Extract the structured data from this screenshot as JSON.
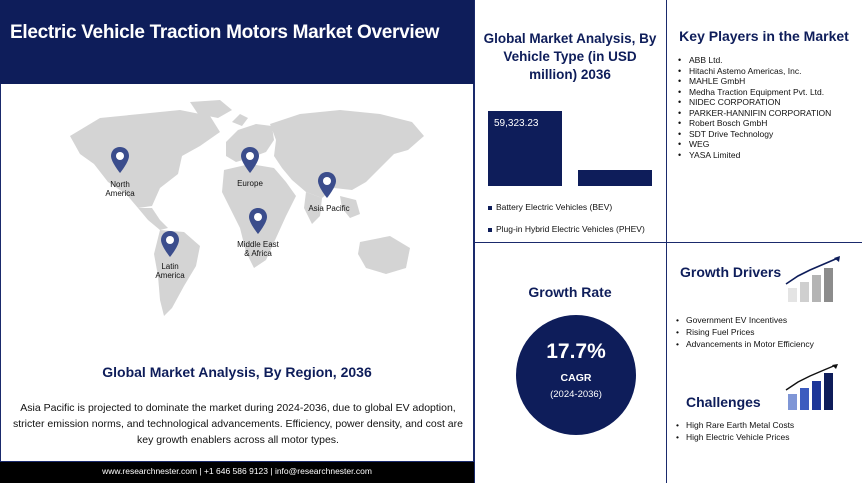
{
  "header": {
    "title": "Electric Vehicle Traction Motors Market Overview"
  },
  "map": {
    "regions": [
      {
        "label": "North America"
      },
      {
        "label": "Europe"
      },
      {
        "label": "Asia Pacific"
      },
      {
        "label": "Middle East & Africa"
      },
      {
        "label": "Latin America"
      }
    ],
    "pin_icon": "map-pin-icon"
  },
  "region_section": {
    "title": "Global Market Analysis, By Region, 2036",
    "text": "Asia Pacific is projected to dominate the market during 2024-2036,  due to global EV adoption, stricter emission norms, and technological advancements. Efficiency, power density, and cost are key growth enablers across all motor types."
  },
  "footer": {
    "text": "www.researchnester.com  | +1 646 586 9123 | info@researchnester.com"
  },
  "vehicle_type": {
    "title": "Global Market Analysis, By Vehicle Type (in USD million) 2036",
    "bar_value_label": "59,323.23",
    "legend": [
      "Battery Electric Vehicles (BEV)",
      "Plug-in Hybrid Electric Vehicles (PHEV)"
    ]
  },
  "chart_data": {
    "type": "bar",
    "categories": [
      "Battery Electric Vehicles (BEV)",
      "Plug-in Hybrid Electric Vehicles (PHEV)"
    ],
    "values": [
      59323.23,
      12500
    ],
    "data_labels": [
      "59,323.23",
      ""
    ],
    "ylim": [
      0,
      60000
    ]
  },
  "key_players": {
    "title": "Key Players in the Market",
    "items": [
      "ABB Ltd.",
      "Hitachi Astemo Americas, Inc.",
      "MAHLE GmbH",
      "Medha Traction Equipment Pvt. Ltd.",
      "NIDEC CORPORATION",
      "PARKER-HANNIFIN CORPORATION",
      "Robert Bosch GmbH",
      "SDT Drive Technology",
      "WEG",
      "YASA Limited"
    ]
  },
  "growth_rate": {
    "title": "Growth Rate",
    "value": "17.7%",
    "label": "CAGR",
    "period": "(2024-2036)"
  },
  "growth_drivers": {
    "title": "Growth Drivers",
    "icon": "rising-bar-chart-icon",
    "items": [
      "Government EV Incentives",
      "Rising Fuel Prices",
      "Advancements in Motor Efficiency"
    ]
  },
  "challenges": {
    "title": "Challenges",
    "icon": "rising-bar-chart-icon",
    "items": [
      "High Rare Earth Metal Costs",
      "High Electric Vehicle Prices"
    ]
  },
  "colors": {
    "navy": "#0e1d5a",
    "map_gray": "#d4d4d4",
    "pin": "#3b4d8c"
  }
}
